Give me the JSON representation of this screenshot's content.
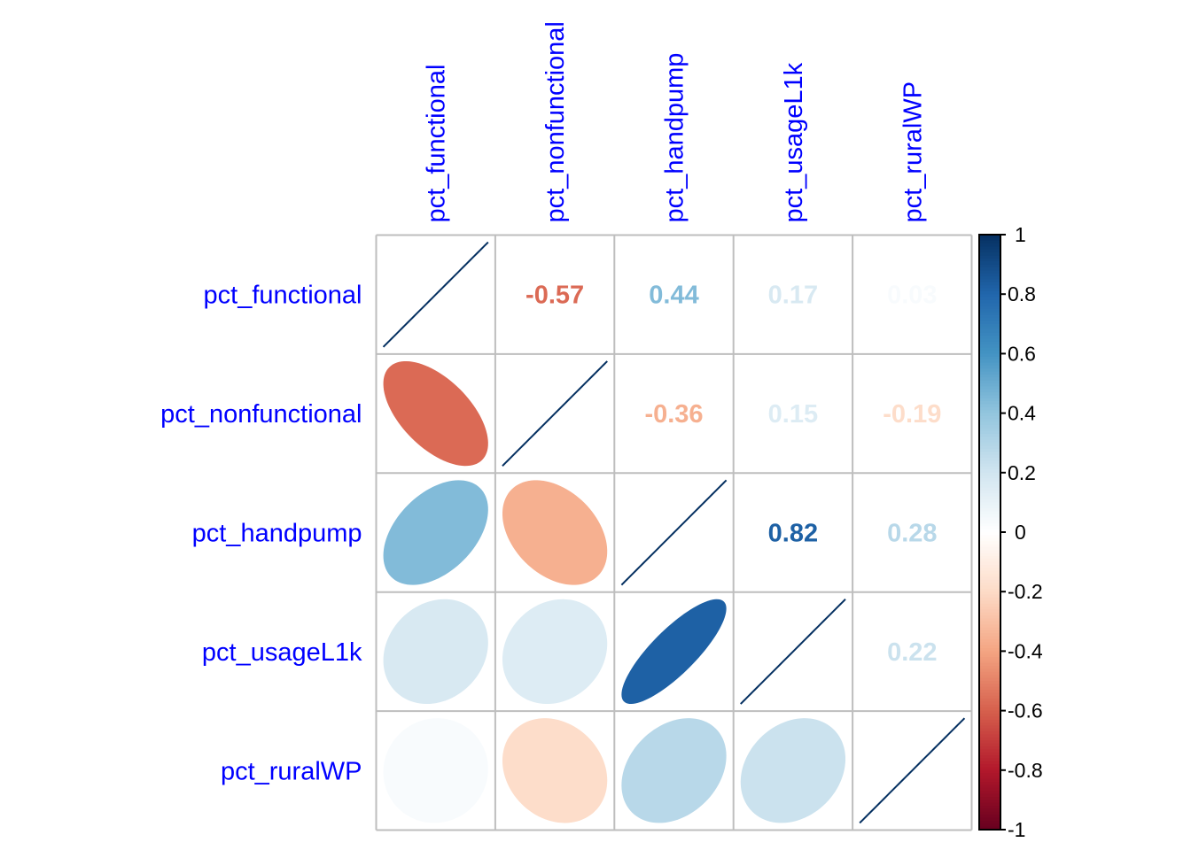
{
  "chart_data": {
    "type": "heatmap",
    "subtype": "correlation-matrix (mixed: lower=ellipse, upper=number)",
    "title": "",
    "variables": [
      "pct_functional",
      "pct_nonfunctional",
      "pct_handpump",
      "pct_usageL1k",
      "pct_ruralWP"
    ],
    "matrix": [
      [
        1.0,
        -0.57,
        0.44,
        0.17,
        0.03
      ],
      [
        -0.57,
        1.0,
        -0.36,
        0.15,
        -0.19
      ],
      [
        0.44,
        -0.36,
        1.0,
        0.82,
        0.28
      ],
      [
        0.17,
        0.15,
        0.82,
        1.0,
        0.22
      ],
      [
        0.03,
        -0.19,
        0.28,
        0.22,
        1.0
      ]
    ],
    "upper_labels": [
      [
        "",
        "-0.57",
        "0.44",
        "0.17",
        "0.03"
      ],
      [
        "",
        "",
        "-0.36",
        "0.15",
        "-0.19"
      ],
      [
        "",
        "",
        "",
        "0.82",
        "0.28"
      ],
      [
        "",
        "",
        "",
        "",
        "0.22"
      ],
      [
        "",
        "",
        "",
        "",
        ""
      ]
    ],
    "lower_method": "ellipse",
    "upper_method": "number",
    "diagonal_method": "ellipse",
    "label_color": "#0000FF",
    "grid_color": "#BEBEBE",
    "colorbar": {
      "range": [
        -1,
        1
      ],
      "ticks": [
        "1",
        "0.8",
        "0.6",
        "0.4",
        "0.2",
        "0",
        "-0.2",
        "-0.4",
        "-0.6",
        "-0.8",
        "-1"
      ],
      "tick_values": [
        1,
        0.8,
        0.6,
        0.4,
        0.2,
        0,
        -0.2,
        -0.4,
        -0.6,
        -0.8,
        -1
      ],
      "placement": "right",
      "palette": [
        "#67001F",
        "#B2182B",
        "#D6604D",
        "#F4A582",
        "#FDDBC7",
        "#FFFFFF",
        "#D1E5F0",
        "#92C5DE",
        "#4393C3",
        "#2166AC",
        "#053061"
      ]
    }
  }
}
